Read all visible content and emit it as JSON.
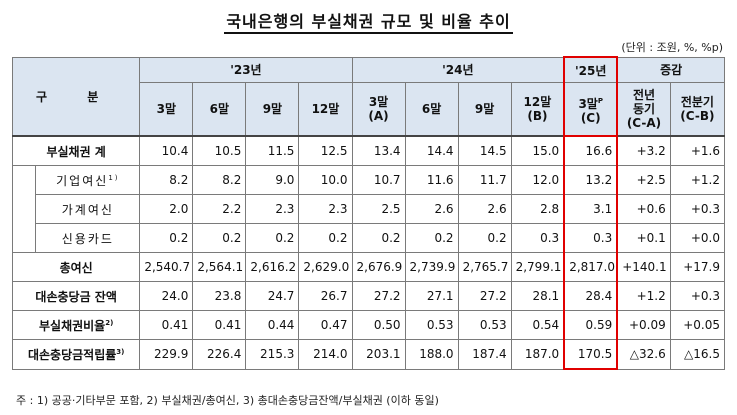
{
  "title": "국내은행의 부실채권 규모 및 비율 추이",
  "unit": "(단위 : 조원, %, %p)",
  "header": {
    "gubun": "구  분",
    "years": [
      "'23년",
      "'24년",
      "'25년"
    ],
    "change": "증감",
    "quarters_23": [
      "3말",
      "6말",
      "9말",
      "12말"
    ],
    "quarters_24": [
      "3말\n(A)",
      "6말",
      "9말",
      "12말\n(B)"
    ],
    "quarter_25": "3말",
    "quarter_25_sup": "P",
    "quarter_25_sub": "(C)",
    "yoy": "전년\n동기\n(C-A)",
    "qoq": "전분기\n(C-B)"
  },
  "rows": [
    {
      "label": "부실채권 계",
      "values": [
        "10.4",
        "10.5",
        "11.5",
        "12.5",
        "13.4",
        "14.4",
        "14.5",
        "15.0",
        "16.6",
        "+3.2",
        "+1.6"
      ]
    },
    {
      "label": "기업여신",
      "sup": "1)",
      "values": [
        "8.2",
        "8.2",
        "9.0",
        "10.0",
        "10.7",
        "11.6",
        "11.7",
        "12.0",
        "13.2",
        "+2.5",
        "+1.2"
      ]
    },
    {
      "label": "가계여신",
      "values": [
        "2.0",
        "2.2",
        "2.3",
        "2.3",
        "2.5",
        "2.6",
        "2.6",
        "2.8",
        "3.1",
        "+0.6",
        "+0.3"
      ]
    },
    {
      "label": "신용카드",
      "values": [
        "0.2",
        "0.2",
        "0.2",
        "0.2",
        "0.2",
        "0.2",
        "0.2",
        "0.3",
        "0.3",
        "+0.1",
        "+0.0"
      ]
    },
    {
      "label": "총여신",
      "values": [
        "2,540.7",
        "2,564.1",
        "2,616.2",
        "2,629.0",
        "2,676.9",
        "2,739.9",
        "2,765.7",
        "2,799.1",
        "2,817.0",
        "+140.1",
        "+17.9"
      ]
    },
    {
      "label": "대손충당금 잔액",
      "values": [
        "24.0",
        "23.8",
        "24.7",
        "26.7",
        "27.2",
        "27.1",
        "27.2",
        "28.1",
        "28.4",
        "+1.2",
        "+0.3"
      ]
    },
    {
      "label": "부실채권비율",
      "sup": "2)",
      "values": [
        "0.41",
        "0.41",
        "0.44",
        "0.47",
        "0.50",
        "0.53",
        "0.53",
        "0.54",
        "0.59",
        "+0.09",
        "+0.05"
      ]
    },
    {
      "label": "대손충당금적립률",
      "sup": "3)",
      "values": [
        "229.9",
        "226.4",
        "215.3",
        "214.0",
        "203.1",
        "188.0",
        "187.4",
        "187.0",
        "170.5",
        "△32.6",
        "△16.5"
      ]
    }
  ],
  "note": "주 : 1) 공공·기타부문 포함,   2) 부실채권/총여신,   3) 총대손충당금잔액/부실채권 (이하 동일)"
}
